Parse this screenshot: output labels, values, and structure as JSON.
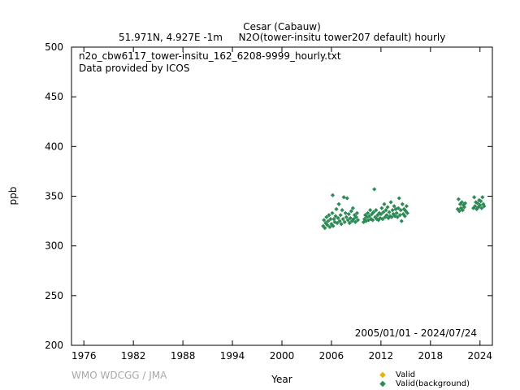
{
  "header": {
    "station": "Cesar (Cabauw)",
    "location": "51.971N, 4.927E -1m",
    "parameter": "N2O(tower-insitu tower207 default) hourly"
  },
  "chart_data": {
    "type": "scatter",
    "file_name": "n2o_cbw6117_tower-insitu_162_6208-9999_hourly.txt",
    "provider": "Data provided by ICOS",
    "period": "2005/01/01 - 2024/07/24",
    "xlabel": "Year",
    "ylabel": "ppb",
    "xlim": [
      1974.5,
      2025.5
    ],
    "ylim": [
      200,
      500
    ],
    "xticks": [
      1976,
      1982,
      1988,
      1994,
      2000,
      2006,
      2012,
      2018,
      2024
    ],
    "yticks": [
      200,
      250,
      300,
      350,
      400,
      450,
      500
    ],
    "grid": false,
    "legend_position": "bottom-right",
    "watermark": "WMO WDCGG / JMA",
    "colors": {
      "valid": "#e8b400",
      "valid_background": "#2e8b57"
    },
    "series": [
      {
        "name": "Valid",
        "color": "#e8b400",
        "points": []
      },
      {
        "name": "Valid(background)",
        "color": "#2e8b57",
        "points": [
          [
            2005.0,
            320
          ],
          [
            2005.1,
            326
          ],
          [
            2005.2,
            318
          ],
          [
            2005.3,
            323
          ],
          [
            2005.4,
            329
          ],
          [
            2005.5,
            321
          ],
          [
            2005.6,
            325
          ],
          [
            2005.7,
            331
          ],
          [
            2005.8,
            319
          ],
          [
            2005.9,
            327
          ],
          [
            2006.0,
            322
          ],
          [
            2006.1,
            333
          ],
          [
            2006.15,
            351
          ],
          [
            2006.2,
            320
          ],
          [
            2006.3,
            327
          ],
          [
            2006.4,
            324
          ],
          [
            2006.5,
            330
          ],
          [
            2006.6,
            337
          ],
          [
            2006.7,
            323
          ],
          [
            2006.8,
            328
          ],
          [
            2006.9,
            342
          ],
          [
            2007.0,
            325
          ],
          [
            2007.1,
            331
          ],
          [
            2007.2,
            322
          ],
          [
            2007.3,
            336
          ],
          [
            2007.4,
            327
          ],
          [
            2007.5,
            349
          ],
          [
            2007.6,
            324
          ],
          [
            2007.7,
            333
          ],
          [
            2007.8,
            329
          ],
          [
            2007.9,
            348
          ],
          [
            2008.0,
            326
          ],
          [
            2008.1,
            332
          ],
          [
            2008.2,
            323
          ],
          [
            2008.3,
            328
          ],
          [
            2008.4,
            335
          ],
          [
            2008.5,
            325
          ],
          [
            2008.6,
            338
          ],
          [
            2008.7,
            327
          ],
          [
            2008.8,
            331
          ],
          [
            2008.9,
            324
          ],
          [
            2009.0,
            329
          ],
          [
            2009.1,
            333
          ],
          [
            2009.2,
            326
          ],
          [
            2009.9,
            324
          ],
          [
            2010.0,
            327
          ],
          [
            2010.1,
            331
          ],
          [
            2010.2,
            325
          ],
          [
            2010.3,
            329
          ],
          [
            2010.4,
            333
          ],
          [
            2010.5,
            326
          ],
          [
            2010.6,
            330
          ],
          [
            2010.7,
            336
          ],
          [
            2010.8,
            327
          ],
          [
            2010.9,
            332
          ],
          [
            2011.0,
            326
          ],
          [
            2011.1,
            334
          ],
          [
            2011.2,
            357
          ],
          [
            2011.3,
            329
          ],
          [
            2011.4,
            336
          ],
          [
            2011.5,
            327
          ],
          [
            2011.6,
            331
          ],
          [
            2011.7,
            326
          ],
          [
            2011.8,
            333
          ],
          [
            2011.9,
            328
          ],
          [
            2012.0,
            332
          ],
          [
            2012.1,
            338
          ],
          [
            2012.2,
            327
          ],
          [
            2012.3,
            334
          ],
          [
            2012.4,
            342
          ],
          [
            2012.5,
            329
          ],
          [
            2012.6,
            336
          ],
          [
            2012.7,
            331
          ],
          [
            2012.8,
            339
          ],
          [
            2012.9,
            328
          ],
          [
            2013.0,
            334
          ],
          [
            2013.1,
            330
          ],
          [
            2013.2,
            344
          ],
          [
            2013.3,
            329
          ],
          [
            2013.4,
            336
          ],
          [
            2013.5,
            332
          ],
          [
            2013.6,
            340
          ],
          [
            2013.7,
            330
          ],
          [
            2013.8,
            337
          ],
          [
            2013.9,
            333
          ],
          [
            2014.0,
            329
          ],
          [
            2014.1,
            338
          ],
          [
            2014.2,
            348
          ],
          [
            2014.3,
            331
          ],
          [
            2014.4,
            336
          ],
          [
            2014.5,
            325
          ],
          [
            2014.6,
            342
          ],
          [
            2014.7,
            332
          ],
          [
            2014.8,
            337
          ],
          [
            2014.9,
            330
          ],
          [
            2015.0,
            335
          ],
          [
            2015.1,
            340
          ],
          [
            2015.2,
            333
          ],
          [
            2021.3,
            337
          ],
          [
            2021.4,
            347
          ],
          [
            2021.5,
            335
          ],
          [
            2021.6,
            342
          ],
          [
            2021.7,
            338
          ],
          [
            2021.8,
            344
          ],
          [
            2021.9,
            336
          ],
          [
            2022.0,
            341
          ],
          [
            2022.1,
            339
          ],
          [
            2022.2,
            343
          ],
          [
            2023.2,
            338
          ],
          [
            2023.3,
            349
          ],
          [
            2023.4,
            340
          ],
          [
            2023.5,
            344
          ],
          [
            2023.6,
            337
          ],
          [
            2023.7,
            343
          ],
          [
            2023.8,
            339
          ],
          [
            2023.9,
            346
          ],
          [
            2024.0,
            341
          ],
          [
            2024.1,
            345
          ],
          [
            2024.2,
            338
          ],
          [
            2024.3,
            349
          ],
          [
            2024.4,
            342
          ],
          [
            2024.5,
            340
          ]
        ]
      }
    ]
  }
}
